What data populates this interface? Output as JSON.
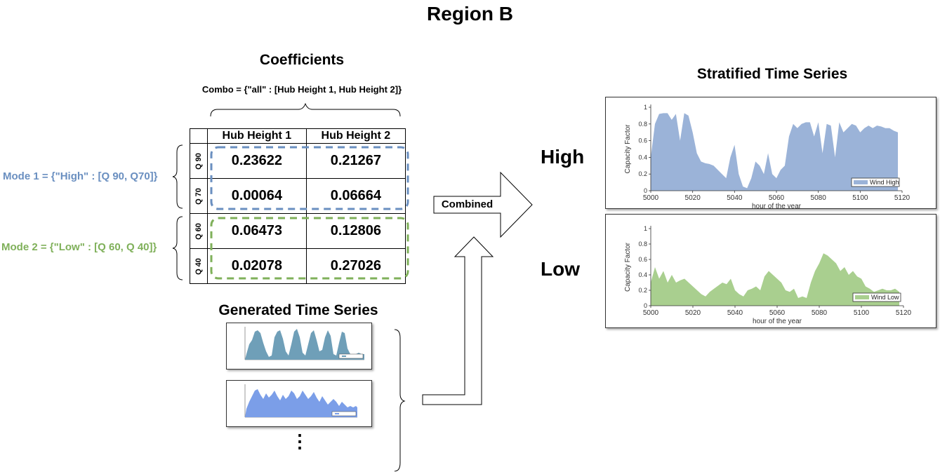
{
  "title": "Region B",
  "coefficients": {
    "heading": "Coefficients",
    "combo": "Combo = {\"all\" : [Hub Height 1, Hub Height 2]}",
    "columns": [
      "Hub Height 1",
      "Hub Height 2"
    ],
    "rows": [
      {
        "label": "Q 90",
        "values": [
          "0.23622",
          "0.21267"
        ]
      },
      {
        "label": "Q 70",
        "values": [
          "0.00064",
          "0.06664"
        ]
      },
      {
        "label": "Q 60",
        "values": [
          "0.06473",
          "0.12806"
        ]
      },
      {
        "label": "Q 40",
        "values": [
          "0.02078",
          "0.27026"
        ]
      }
    ]
  },
  "modes": [
    {
      "label": "Mode 1 = {\"High\" : [Q 90, Q70]}",
      "color": "#6a8fc0"
    },
    {
      "label": "Mode 2 = {\"Low\" : [Q 60, Q 40]}",
      "color": "#7fb05a"
    }
  ],
  "generated": {
    "heading": "Generated Time Series",
    "dots": "⋮"
  },
  "arrow": {
    "label": "Combined"
  },
  "stratified": {
    "heading": "Stratified Time Series",
    "high_label": "High",
    "low_label": "Low"
  },
  "chart_data": [
    {
      "type": "area",
      "title": "",
      "xlabel": "hour of the year",
      "ylabel": "Capacity Factor",
      "xlim": [
        5000,
        5120
      ],
      "ylim": [
        0,
        1
      ],
      "xticks": [
        5000,
        5020,
        5040,
        5060,
        5080,
        5100,
        5120
      ],
      "yticks": [
        0,
        0.2,
        0.4,
        0.6,
        0.8,
        1
      ],
      "legend": "bottom-right",
      "color": "#9bb3d8",
      "series": [
        {
          "name": "Wind High",
          "x": [
            5000,
            5002,
            5004,
            5006,
            5008,
            5010,
            5012,
            5014,
            5016,
            5018,
            5020,
            5022,
            5024,
            5026,
            5028,
            5030,
            5032,
            5034,
            5036,
            5038,
            5040,
            5042,
            5044,
            5046,
            5048,
            5050,
            5052,
            5054,
            5056,
            5058,
            5060,
            5062,
            5064,
            5066,
            5068,
            5070,
            5072,
            5074,
            5076,
            5078,
            5080,
            5082,
            5084,
            5086,
            5088,
            5090,
            5092,
            5094,
            5096,
            5098,
            5100,
            5102,
            5104,
            5106,
            5108,
            5110,
            5112,
            5114,
            5116,
            5118
          ],
          "values": [
            0.4,
            0.8,
            0.92,
            0.93,
            0.93,
            0.85,
            0.92,
            0.6,
            0.93,
            0.9,
            0.7,
            0.45,
            0.35,
            0.33,
            0.32,
            0.3,
            0.25,
            0.2,
            0.15,
            0.4,
            0.55,
            0.2,
            0.05,
            0.03,
            0.15,
            0.35,
            0.3,
            0.2,
            0.45,
            0.2,
            0.15,
            0.25,
            0.3,
            0.65,
            0.8,
            0.75,
            0.8,
            0.82,
            0.82,
            0.65,
            0.82,
            0.45,
            0.8,
            0.78,
            0.4,
            0.82,
            0.7,
            0.75,
            0.8,
            0.78,
            0.7,
            0.75,
            0.78,
            0.75,
            0.78,
            0.77,
            0.75,
            0.75,
            0.72,
            0.7
          ]
        }
      ]
    },
    {
      "type": "area",
      "title": "",
      "xlabel": "hour of the year",
      "ylabel": "Capacity Factor",
      "xlim": [
        5000,
        5120
      ],
      "ylim": [
        0,
        1
      ],
      "xticks": [
        5000,
        5020,
        5040,
        5060,
        5080,
        5100,
        5120
      ],
      "yticks": [
        0,
        0.2,
        0.4,
        0.6,
        0.8,
        1
      ],
      "legend": "bottom-right",
      "color": "#a9cf8f",
      "series": [
        {
          "name": "Wind Low",
          "x": [
            5000,
            5002,
            5004,
            5006,
            5008,
            5010,
            5012,
            5014,
            5016,
            5018,
            5020,
            5022,
            5024,
            5026,
            5028,
            5030,
            5032,
            5034,
            5036,
            5038,
            5040,
            5042,
            5044,
            5046,
            5048,
            5050,
            5052,
            5054,
            5056,
            5058,
            5060,
            5062,
            5064,
            5066,
            5068,
            5070,
            5072,
            5074,
            5076,
            5078,
            5080,
            5082,
            5084,
            5086,
            5088,
            5090,
            5092,
            5094,
            5096,
            5098,
            5100,
            5102,
            5104,
            5106,
            5108,
            5110,
            5112,
            5114,
            5116,
            5118
          ],
          "values": [
            0.3,
            0.5,
            0.35,
            0.45,
            0.3,
            0.4,
            0.3,
            0.33,
            0.35,
            0.3,
            0.25,
            0.2,
            0.15,
            0.12,
            0.18,
            0.22,
            0.26,
            0.3,
            0.28,
            0.35,
            0.2,
            0.15,
            0.12,
            0.2,
            0.22,
            0.25,
            0.2,
            0.38,
            0.45,
            0.4,
            0.35,
            0.3,
            0.2,
            0.18,
            0.22,
            0.1,
            0.12,
            0.1,
            0.3,
            0.45,
            0.55,
            0.68,
            0.65,
            0.6,
            0.55,
            0.45,
            0.5,
            0.4,
            0.45,
            0.38,
            0.35,
            0.25,
            0.22,
            0.18,
            0.2,
            0.22,
            0.2,
            0.2,
            0.22,
            0.18
          ]
        }
      ]
    }
  ]
}
